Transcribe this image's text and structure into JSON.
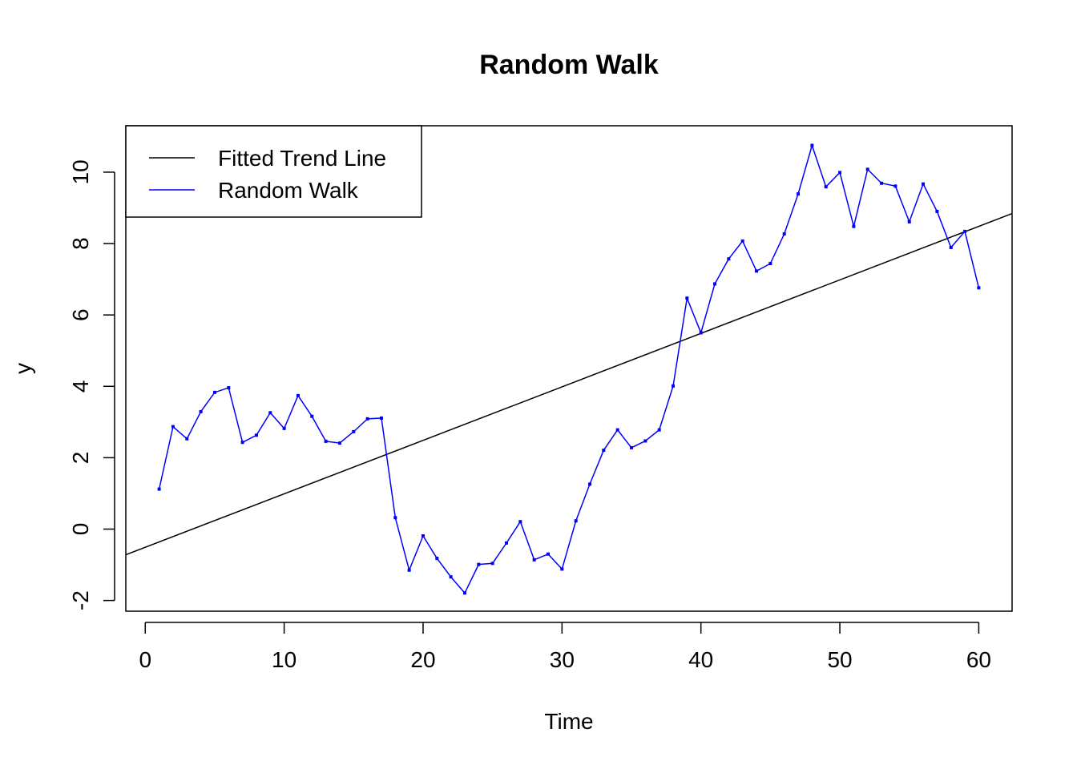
{
  "chart_data": {
    "type": "line",
    "title": "Random Walk",
    "xlabel": "Time",
    "ylabel": "y",
    "xlim": [
      -1.4,
      62.4
    ],
    "ylim": [
      -2.3,
      11.3
    ],
    "x_ticks": [
      0,
      10,
      20,
      30,
      40,
      50,
      60
    ],
    "y_ticks": [
      -2,
      0,
      2,
      4,
      6,
      8,
      10
    ],
    "grid": false,
    "legend_position": "top-left",
    "series": [
      {
        "name": "Fitted Trend Line",
        "color": "#000000",
        "kind": "line",
        "x": [
          -1.4,
          62.4
        ],
        "y": [
          -0.72,
          8.84
        ]
      },
      {
        "name": "Random Walk",
        "color": "#0000ff",
        "kind": "line-with-points",
        "x": [
          1,
          2,
          3,
          4,
          5,
          6,
          7,
          8,
          9,
          10,
          11,
          12,
          13,
          14,
          15,
          16,
          17,
          18,
          19,
          20,
          21,
          22,
          23,
          24,
          25,
          26,
          27,
          28,
          29,
          30,
          31,
          32,
          33,
          34,
          35,
          36,
          37,
          38,
          39,
          40,
          41,
          42,
          43,
          44,
          45,
          46,
          47,
          48,
          49,
          50,
          51,
          52,
          53,
          54,
          55,
          56,
          57,
          58,
          59,
          60
        ],
        "y": [
          1.12,
          2.87,
          2.53,
          3.29,
          3.83,
          3.96,
          2.43,
          2.63,
          3.26,
          2.82,
          3.74,
          3.16,
          2.46,
          2.41,
          2.73,
          3.09,
          3.11,
          0.32,
          -1.15,
          -0.19,
          -0.82,
          -1.34,
          -1.79,
          -0.99,
          -0.96,
          -0.39,
          0.21,
          -0.86,
          -0.7,
          -1.12,
          0.23,
          1.26,
          2.21,
          2.78,
          2.28,
          2.47,
          2.78,
          4.01,
          6.47,
          5.5,
          6.87,
          7.57,
          8.07,
          7.23,
          7.44,
          8.27,
          9.39,
          10.75,
          9.59,
          9.99,
          8.48,
          10.08,
          9.69,
          9.61,
          8.61,
          9.67,
          8.9,
          7.89,
          8.34,
          6.76
        ]
      }
    ]
  }
}
